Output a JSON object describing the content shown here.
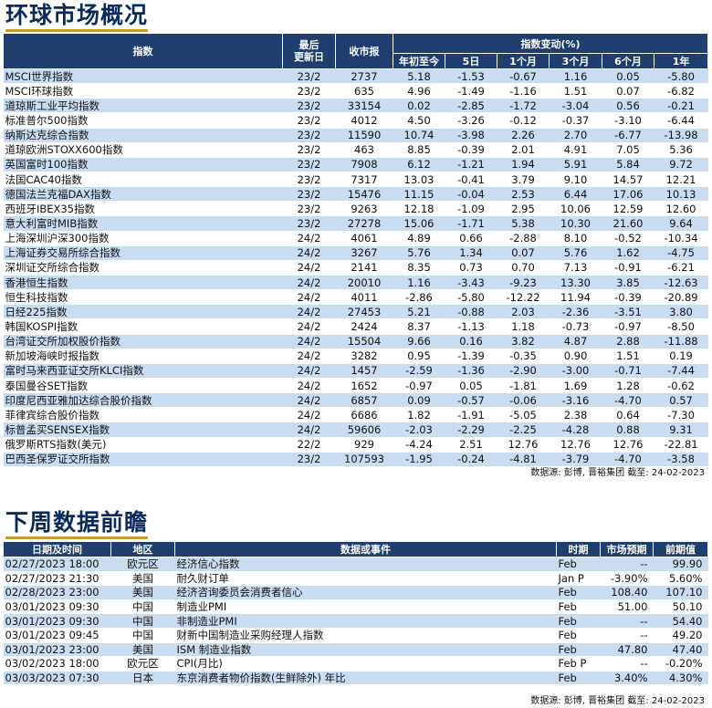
{
  "market_section": {
    "title": "环球市场概况",
    "headers": {
      "index": "指数",
      "updated": "最后\n更新日",
      "close": "收市报",
      "change_group": "指数变动(%)",
      "ytd": "年初至今",
      "d5": "5日",
      "m1": "1个月",
      "m3": "3个月",
      "m6": "6个月",
      "y1": "1年"
    },
    "rows": [
      {
        "name": "MSCI世界指数",
        "date": "23/2",
        "close": "2737",
        "ytd": "5.18",
        "d5": "-1.53",
        "m1": "-0.67",
        "m3": "1.16",
        "m6": "0.05",
        "y1": "-5.80"
      },
      {
        "name": "MSCI环球指数",
        "date": "23/2",
        "close": "635",
        "ytd": "4.96",
        "d5": "-1.49",
        "m1": "-1.16",
        "m3": "1.51",
        "m6": "0.07",
        "y1": "-6.82"
      },
      {
        "name": "道琼斯工业平均指数",
        "date": "23/2",
        "close": "33154",
        "ytd": "0.02",
        "d5": "-2.85",
        "m1": "-1.72",
        "m3": "-3.04",
        "m6": "0.56",
        "y1": "-0.21"
      },
      {
        "name": "标准普尔500指数",
        "date": "23/2",
        "close": "4012",
        "ytd": "4.50",
        "d5": "-3.26",
        "m1": "-0.12",
        "m3": "-0.37",
        "m6": "-3.10",
        "y1": "-6.44"
      },
      {
        "name": "纳斯达克综合指数",
        "date": "23/2",
        "close": "11590",
        "ytd": "10.74",
        "d5": "-3.98",
        "m1": "2.26",
        "m3": "2.70",
        "m6": "-6.77",
        "y1": "-13.98"
      },
      {
        "name": "道琼欧洲STOXX600指数",
        "date": "23/2",
        "close": "463",
        "ytd": "8.85",
        "d5": "-0.39",
        "m1": "2.01",
        "m3": "4.91",
        "m6": "7.05",
        "y1": "5.36"
      },
      {
        "name": "英国富时100指数",
        "date": "23/2",
        "close": "7908",
        "ytd": "6.12",
        "d5": "-1.21",
        "m1": "1.94",
        "m3": "5.91",
        "m6": "5.84",
        "y1": "9.72"
      },
      {
        "name": "法国CAC40指数",
        "date": "23/2",
        "close": "7317",
        "ytd": "13.03",
        "d5": "-0.41",
        "m1": "3.79",
        "m3": "9.10",
        "m6": "14.57",
        "y1": "12.21"
      },
      {
        "name": "德国法兰克福DAX指数",
        "date": "23/2",
        "close": "15476",
        "ytd": "11.15",
        "d5": "-0.04",
        "m1": "2.53",
        "m3": "6.44",
        "m6": "17.06",
        "y1": "10.13"
      },
      {
        "name": "西班牙IBEX35指数",
        "date": "23/2",
        "close": "9263",
        "ytd": "12.18",
        "d5": "-1.09",
        "m1": "2.95",
        "m3": "10.06",
        "m6": "12.59",
        "y1": "12.60"
      },
      {
        "name": "意大利富时MIB指数",
        "date": "23/2",
        "close": "27278",
        "ytd": "15.06",
        "d5": "-1.71",
        "m1": "5.38",
        "m3": "10.30",
        "m6": "21.60",
        "y1": "9.64"
      },
      {
        "name": "上海深圳沪深300指数",
        "date": "24/2",
        "close": "4061",
        "ytd": "4.89",
        "d5": "0.66",
        "m1": "-2.88",
        "m3": "8.10",
        "m6": "-0.52",
        "y1": "-10.34"
      },
      {
        "name": "上海证券交易所综合指数",
        "date": "24/2",
        "close": "3267",
        "ytd": "5.76",
        "d5": "1.34",
        "m1": "0.07",
        "m3": "5.76",
        "m6": "1.62",
        "y1": "-4.75"
      },
      {
        "name": "深圳证交所综合指数",
        "date": "24/2",
        "close": "2141",
        "ytd": "8.35",
        "d5": "0.73",
        "m1": "0.70",
        "m3": "7.13",
        "m6": "-0.91",
        "y1": "-6.21"
      },
      {
        "name": "香港恒生指数",
        "date": "24/2",
        "close": "20010",
        "ytd": "1.16",
        "d5": "-3.43",
        "m1": "-9.23",
        "m3": "13.30",
        "m6": "3.85",
        "y1": "-12.63"
      },
      {
        "name": "恒生科技指数",
        "date": "24/2",
        "close": "4011",
        "ytd": "-2.86",
        "d5": "-5.80",
        "m1": "-12.22",
        "m3": "11.94",
        "m6": "-0.39",
        "y1": "-20.89"
      },
      {
        "name": "日经225指数",
        "date": "24/2",
        "close": "27453",
        "ytd": "5.21",
        "d5": "-0.88",
        "m1": "2.03",
        "m3": "-2.36",
        "m6": "-3.51",
        "y1": "3.80"
      },
      {
        "name": "韩国KOSPI指数",
        "date": "24/2",
        "close": "2424",
        "ytd": "8.37",
        "d5": "-1.13",
        "m1": "1.18",
        "m3": "-0.73",
        "m6": "-0.97",
        "y1": "-8.50"
      },
      {
        "name": "台湾证交所加权股价指数",
        "date": "24/2",
        "close": "15504",
        "ytd": "9.66",
        "d5": "0.16",
        "m1": "3.82",
        "m3": "4.87",
        "m6": "2.88",
        "y1": "-11.88"
      },
      {
        "name": "新加坡海峡时报指数",
        "date": "24/2",
        "close": "3282",
        "ytd": "0.95",
        "d5": "-1.39",
        "m1": "-0.35",
        "m3": "0.90",
        "m6": "1.51",
        "y1": "0.19"
      },
      {
        "name": "富时马来西亚证交所KLCI指数",
        "date": "24/2",
        "close": "1457",
        "ytd": "-2.59",
        "d5": "-1.36",
        "m1": "-2.90",
        "m3": "-3.00",
        "m6": "-0.71",
        "y1": "-7.44"
      },
      {
        "name": "泰国曼谷SET指数",
        "date": "24/2",
        "close": "1652",
        "ytd": "-0.97",
        "d5": "0.05",
        "m1": "-1.81",
        "m3": "1.69",
        "m6": "1.28",
        "y1": "-0.62"
      },
      {
        "name": "印度尼西亚雅加达综合股价指数",
        "date": "24/2",
        "close": "6857",
        "ytd": "0.09",
        "d5": "-0.57",
        "m1": "-0.06",
        "m3": "-3.16",
        "m6": "-4.70",
        "y1": "0.57"
      },
      {
        "name": "菲律宾综合股价指数",
        "date": "24/2",
        "close": "6686",
        "ytd": "1.82",
        "d5": "-1.91",
        "m1": "-5.05",
        "m3": "2.38",
        "m6": "0.64",
        "y1": "-7.30"
      },
      {
        "name": "标普孟买SENSEX指数",
        "date": "24/2",
        "close": "59606",
        "ytd": "-2.03",
        "d5": "-2.29",
        "m1": "-2.25",
        "m3": "-4.28",
        "m6": "0.88",
        "y1": "9.31"
      },
      {
        "name": "俄罗斯RTS指数(美元)",
        "date": "22/2",
        "close": "929",
        "ytd": "-4.24",
        "d5": "2.51",
        "m1": "12.76",
        "m3": "12.76",
        "m6": "12.76",
        "y1": "-22.81"
      },
      {
        "name": "巴西圣保罗证交所指数",
        "date": "23/2",
        "close": "107593",
        "ytd": "-1.95",
        "d5": "-0.24",
        "m1": "-4.81",
        "m3": "-3.79",
        "m6": "-4.70",
        "y1": "-3.58"
      }
    ],
    "source": "数据源: 彭博, 晋裕集团 截至: 24-02-2023"
  },
  "calendar_section": {
    "title": "下周数据前瞻",
    "headers": {
      "datetime": "日期及时间",
      "region": "地区",
      "event": "数据或事件",
      "period": "时期",
      "forecast": "市场预期",
      "previous": "前期值"
    },
    "rows": [
      {
        "datetime": "02/27/2023 18:00",
        "region": "欧元区",
        "event": "经济信心指数",
        "period": "Feb",
        "forecast": "--",
        "previous": "99.90"
      },
      {
        "datetime": "02/27/2023 21:30",
        "region": "美国",
        "event": "耐久财订单",
        "period": "Jan P",
        "forecast": "-3.90%",
        "previous": "5.60%"
      },
      {
        "datetime": "02/28/2023 23:00",
        "region": "美国",
        "event": "经济咨询委员会消费者信心",
        "period": "Feb",
        "forecast": "108.40",
        "previous": "107.10"
      },
      {
        "datetime": "03/01/2023 09:30",
        "region": "中国",
        "event": "制造业PMI",
        "period": "Feb",
        "forecast": "51.00",
        "previous": "50.10"
      },
      {
        "datetime": "03/01/2023 09:30",
        "region": "中国",
        "event": "非制造业PMI",
        "period": "Feb",
        "forecast": "--",
        "previous": "54.40"
      },
      {
        "datetime": "03/01/2023 09:45",
        "region": "中国",
        "event": "财新中国制造业采购经理人指数",
        "period": "Feb",
        "forecast": "--",
        "previous": "49.20"
      },
      {
        "datetime": "03/01/2023 23:00",
        "region": "美国",
        "event": "ISM 制造业指数",
        "period": "Feb",
        "forecast": "47.80",
        "previous": "47.40"
      },
      {
        "datetime": "03/02/2023 18:00",
        "region": "欧元区",
        "event": "CPI(月比)",
        "period": "Feb P",
        "forecast": "--",
        "previous": "-0.20%"
      },
      {
        "datetime": "03/03/2023 07:30",
        "region": "日本",
        "event": "东京消费者物价指数(生鲜除外) 年比",
        "period": "Feb",
        "forecast": "3.40%",
        "previous": "4.30%"
      }
    ],
    "source": "数据源: 彭博, 晋裕集团 截至: 24-02-2023"
  }
}
